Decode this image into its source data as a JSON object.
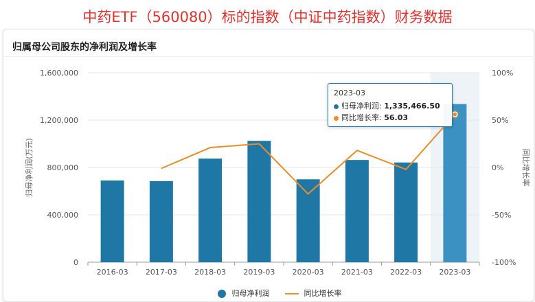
{
  "banner_title": "中药ETF（560080）标的指数（中证中药指数）财务数据",
  "card_title": "归属母公司股东的净利润及增长率",
  "tooltip": {
    "title": "2023-03",
    "rows": [
      {
        "label": "归母净利润:",
        "value": "1,335,466.50",
        "color": "#1f77a6"
      },
      {
        "label": "同比增长率:",
        "value": "56.03",
        "color": "#f08c24"
      }
    ]
  },
  "legend": {
    "bar_label": "归母净利润",
    "line_label": "同比增长率"
  },
  "chart_data": {
    "type": "bar",
    "categories": [
      "2016-03",
      "2017-03",
      "2018-03",
      "2019-03",
      "2020-03",
      "2021-03",
      "2022-03",
      "2023-03"
    ],
    "series": [
      {
        "name": "归母净利润",
        "type": "bar",
        "axis": "left",
        "color": "#1f77a6",
        "highlight_color": "#3a91c2",
        "values": [
          690000,
          685000,
          875000,
          1025000,
          700000,
          863000,
          842000,
          1335466.5
        ]
      },
      {
        "name": "同比增长率",
        "type": "line",
        "axis": "right",
        "color": "#f08c24",
        "values": [
          null,
          -1,
          21,
          25,
          -28,
          18,
          -2,
          56.03
        ]
      }
    ],
    "ylabel": "归母净利润(万元)",
    "ylabel_right": "同比增长率",
    "ylim": [
      0,
      1600000
    ],
    "ylim_right": [
      -100,
      100
    ],
    "y_ticks": [
      "1,600,000",
      "1,200,000",
      "800,000",
      "400,000",
      "0"
    ],
    "y_tick_values": [
      1600000,
      1200000,
      800000,
      400000,
      0
    ],
    "y_right_ticks": [
      "100%",
      "50%",
      "0%",
      "-50%",
      "-100%"
    ],
    "y_right_tick_values": [
      100,
      50,
      0,
      -50,
      -100
    ],
    "highlighted_category": "2023-03",
    "grid": true,
    "legend_position": "bottom-center"
  }
}
